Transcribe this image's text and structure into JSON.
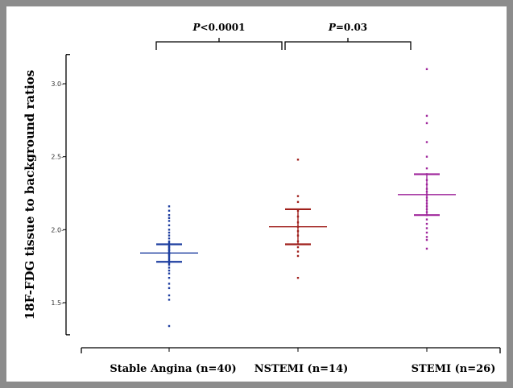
{
  "chart_data": {
    "type": "scatter",
    "ylabel": "18F-FDG tissue to background ratios",
    "xlabel": "",
    "ylim": [
      1.28,
      3.2
    ],
    "yticks": [
      1.5,
      2.0,
      2.5,
      3.0
    ],
    "ytick_labels": [
      "1.5-",
      "2.0-",
      "2.5-",
      "3.0-"
    ],
    "categories": [
      "Stable Angina (n=40)",
      "NSTEMI (n=14)",
      "STEMI (n=26)"
    ],
    "groups": [
      {
        "name": "Stable Angina (n=40)",
        "color": "#1f3fa0",
        "mean": 1.84,
        "ci": [
          1.78,
          1.9
        ],
        "points": [
          1.34,
          1.52,
          1.55,
          1.6,
          1.63,
          1.67,
          1.7,
          1.72,
          1.74,
          1.76,
          1.77,
          1.78,
          1.79,
          1.8,
          1.81,
          1.82,
          1.83,
          1.83,
          1.84,
          1.84,
          1.85,
          1.86,
          1.86,
          1.87,
          1.88,
          1.88,
          1.89,
          1.9,
          1.91,
          1.92,
          1.94,
          1.96,
          1.98,
          2.0,
          2.03,
          2.06,
          2.08,
          2.1,
          2.13,
          2.16
        ]
      },
      {
        "name": "NSTEMI (n=14)",
        "color": "#a0201c",
        "mean": 2.02,
        "ci": [
          1.9,
          2.14
        ],
        "points": [
          1.67,
          1.82,
          1.85,
          1.88,
          1.92,
          1.96,
          1.99,
          2.02,
          2.05,
          2.09,
          2.13,
          2.19,
          2.23,
          2.48
        ]
      },
      {
        "name": "STEMI (n=26)",
        "color": "#a0289c",
        "mean": 2.24,
        "ci": [
          2.1,
          2.38
        ],
        "points": [
          1.87,
          1.93,
          1.95,
          1.98,
          2.01,
          2.04,
          2.07,
          2.1,
          2.12,
          2.14,
          2.16,
          2.18,
          2.2,
          2.22,
          2.24,
          2.26,
          2.28,
          2.31,
          2.34,
          2.38,
          2.42,
          2.5,
          2.6,
          2.73,
          2.78,
          3.1
        ]
      }
    ],
    "annotations": [
      {
        "from": 0,
        "to": 1,
        "label_prefix": "P",
        "label_value": "<0.0001"
      },
      {
        "from": 1,
        "to": 2,
        "label_prefix": "P",
        "label_value": "=0.03"
      }
    ]
  }
}
